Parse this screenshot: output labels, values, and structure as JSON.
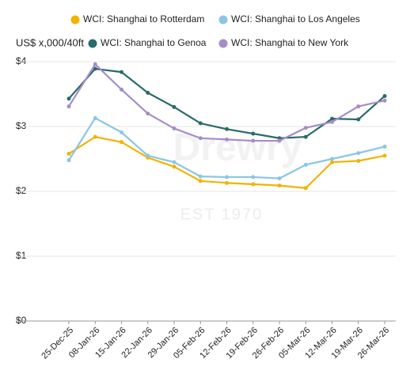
{
  "chart_data": {
    "type": "line",
    "ylabel": "US$ x,000/40ft",
    "watermark": [
      "Drewry",
      "EST 1970"
    ],
    "categories": [
      "25-Dec-25",
      "08-Jan-26",
      "15-Jan-26",
      "22-Jan-26",
      "29-Jan-26",
      "05-Feb-26",
      "12-Feb-26",
      "19-Feb-26",
      "26-Feb-26",
      "05-Mar-26",
      "12-Mar-26",
      "19-Mar-26",
      "26-Mar-26"
    ],
    "series": [
      {
        "name": "WCI: Shanghai to Rotterdam",
        "color": "#f0b400",
        "values": [
          2.58,
          2.84,
          2.76,
          2.52,
          2.38,
          2.16,
          2.13,
          2.11,
          2.09,
          2.05,
          2.45,
          2.47,
          2.55
        ]
      },
      {
        "name": "WCI: Shanghai to Los Angeles",
        "color": "#8ac6e4",
        "values": [
          2.48,
          3.13,
          2.91,
          2.55,
          2.45,
          2.23,
          2.22,
          2.22,
          2.2,
          2.41,
          2.5,
          2.59,
          2.69
        ]
      },
      {
        "name": "WCI: Shanghai to Genoa",
        "color": "#2a6b6b",
        "values": [
          3.43,
          3.89,
          3.84,
          3.52,
          3.3,
          3.05,
          2.96,
          2.89,
          2.82,
          2.84,
          3.12,
          3.11,
          3.47
        ]
      },
      {
        "name": "WCI: Shanghai to New York",
        "color": "#a58dc8",
        "values": [
          3.31,
          3.96,
          3.57,
          3.2,
          2.97,
          2.82,
          2.8,
          2.78,
          2.78,
          2.98,
          3.07,
          3.31,
          3.4
        ]
      }
    ],
    "ylim": [
      0,
      4
    ],
    "yticks": [
      {
        "value": 0,
        "label": "$0"
      },
      {
        "value": 1,
        "label": "$1"
      },
      {
        "value": 2,
        "label": "$2"
      },
      {
        "value": 3,
        "label": "$3"
      },
      {
        "value": 4,
        "label": "$4"
      }
    ],
    "grid": true
  }
}
